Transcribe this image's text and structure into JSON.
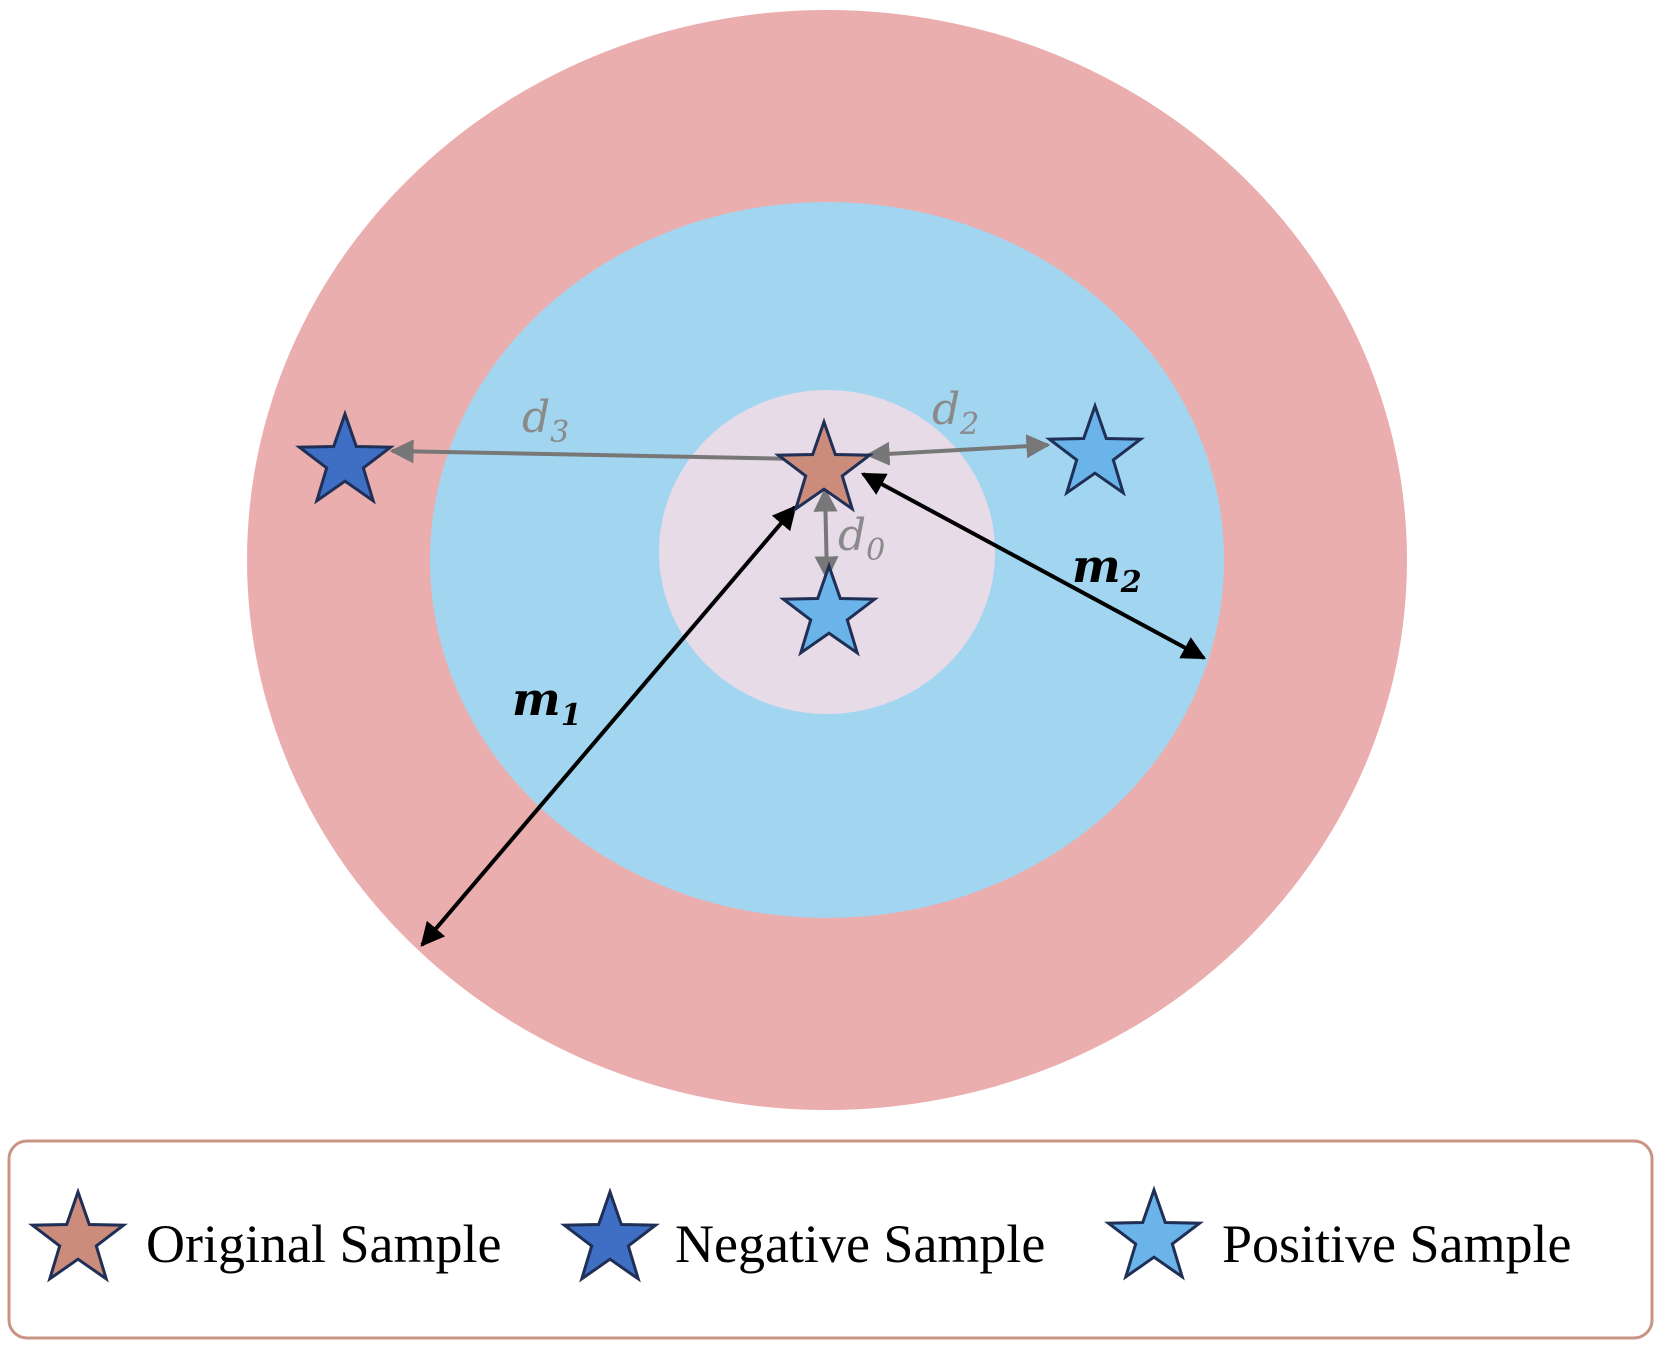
{
  "colors": {
    "outer_ring": "#ebaeae",
    "middle_ring": "#a2d5f0",
    "inner_core": "#e6dbe7",
    "original_star": "#cc8c7c",
    "negative_star": "#3e6fc4",
    "positive_star": "#6bb4ea",
    "star_outline": "#1f2f55",
    "distance_arrow": "#777777",
    "margin_arrow": "#000000",
    "legend_border": "#c89484"
  },
  "labels": {
    "d3": {
      "base": "d",
      "sub": "3"
    },
    "d2": {
      "base": "d",
      "sub": "2"
    },
    "d0": {
      "base": "d",
      "sub": "0"
    },
    "m1": {
      "base": "m",
      "sub": "1"
    },
    "m2": {
      "base": "m",
      "sub": "2"
    }
  },
  "legend": {
    "items": [
      {
        "label": "Original Sample",
        "icon": "original-sample-star-icon"
      },
      {
        "label": "Negative Sample",
        "icon": "negative-sample-star-icon"
      },
      {
        "label": "Positive Sample",
        "icon": "positive-sample-star-icon"
      }
    ]
  }
}
